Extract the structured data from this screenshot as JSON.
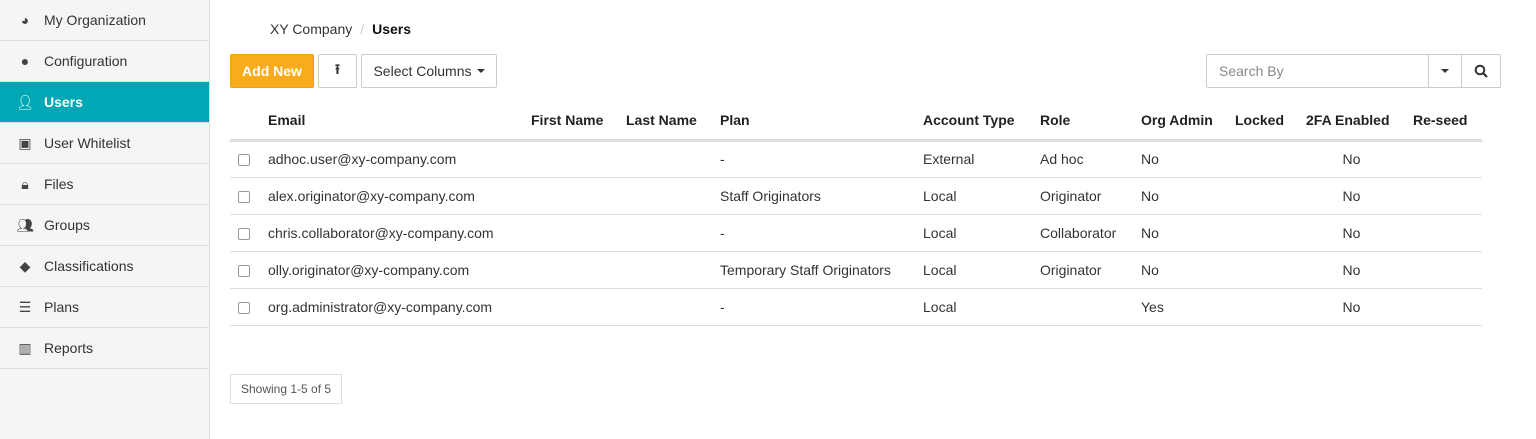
{
  "sidebar": {
    "items": [
      {
        "label": "My Organization",
        "icon": "dashboard-icon"
      },
      {
        "label": "Configuration",
        "icon": "globe-icon"
      },
      {
        "label": "Users",
        "icon": "user-icon",
        "active": true
      },
      {
        "label": "User Whitelist",
        "icon": "contact-card-icon"
      },
      {
        "label": "Files",
        "icon": "lock-icon"
      },
      {
        "label": "Groups",
        "icon": "group-icon"
      },
      {
        "label": "Classifications",
        "icon": "tags-icon"
      },
      {
        "label": "Plans",
        "icon": "server-icon"
      },
      {
        "label": "Reports",
        "icon": "bar-chart-icon"
      }
    ]
  },
  "breadcrumb": {
    "parent": "XY Company",
    "separator": "/",
    "current": "Users"
  },
  "toolbar": {
    "add_new": "Add New",
    "select_columns": "Select Columns",
    "search_placeholder": "Search By"
  },
  "colors": {
    "accent": "#00a8b5",
    "primary_button": "#f9ac1b"
  },
  "table": {
    "headers": [
      "Email",
      "First Name",
      "Last Name",
      "Plan",
      "Account Type",
      "Role",
      "Org Admin",
      "Locked",
      "2FA Enabled",
      "Re-seed"
    ],
    "rows": [
      [
        "adhoc.user@xy-company.com",
        "",
        "",
        "-",
        "External",
        "Ad hoc",
        "No",
        "",
        "No",
        ""
      ],
      [
        "alex.originator@xy-company.com",
        "",
        "",
        "Staff Originators",
        "Local",
        "Originator",
        "No",
        "",
        "No",
        ""
      ],
      [
        "chris.collaborator@xy-company.com",
        "",
        "",
        "-",
        "Local",
        "Collaborator",
        "No",
        "",
        "No",
        ""
      ],
      [
        "olly.originator@xy-company.com",
        "",
        "",
        "Temporary Staff Originators",
        "Local",
        "Originator",
        "No",
        "",
        "No",
        ""
      ],
      [
        "org.administrator@xy-company.com",
        "",
        "",
        "-",
        "Local",
        "",
        "Yes",
        "",
        "No",
        ""
      ]
    ]
  },
  "pagination": {
    "showing": "Showing 1-5 of 5"
  }
}
